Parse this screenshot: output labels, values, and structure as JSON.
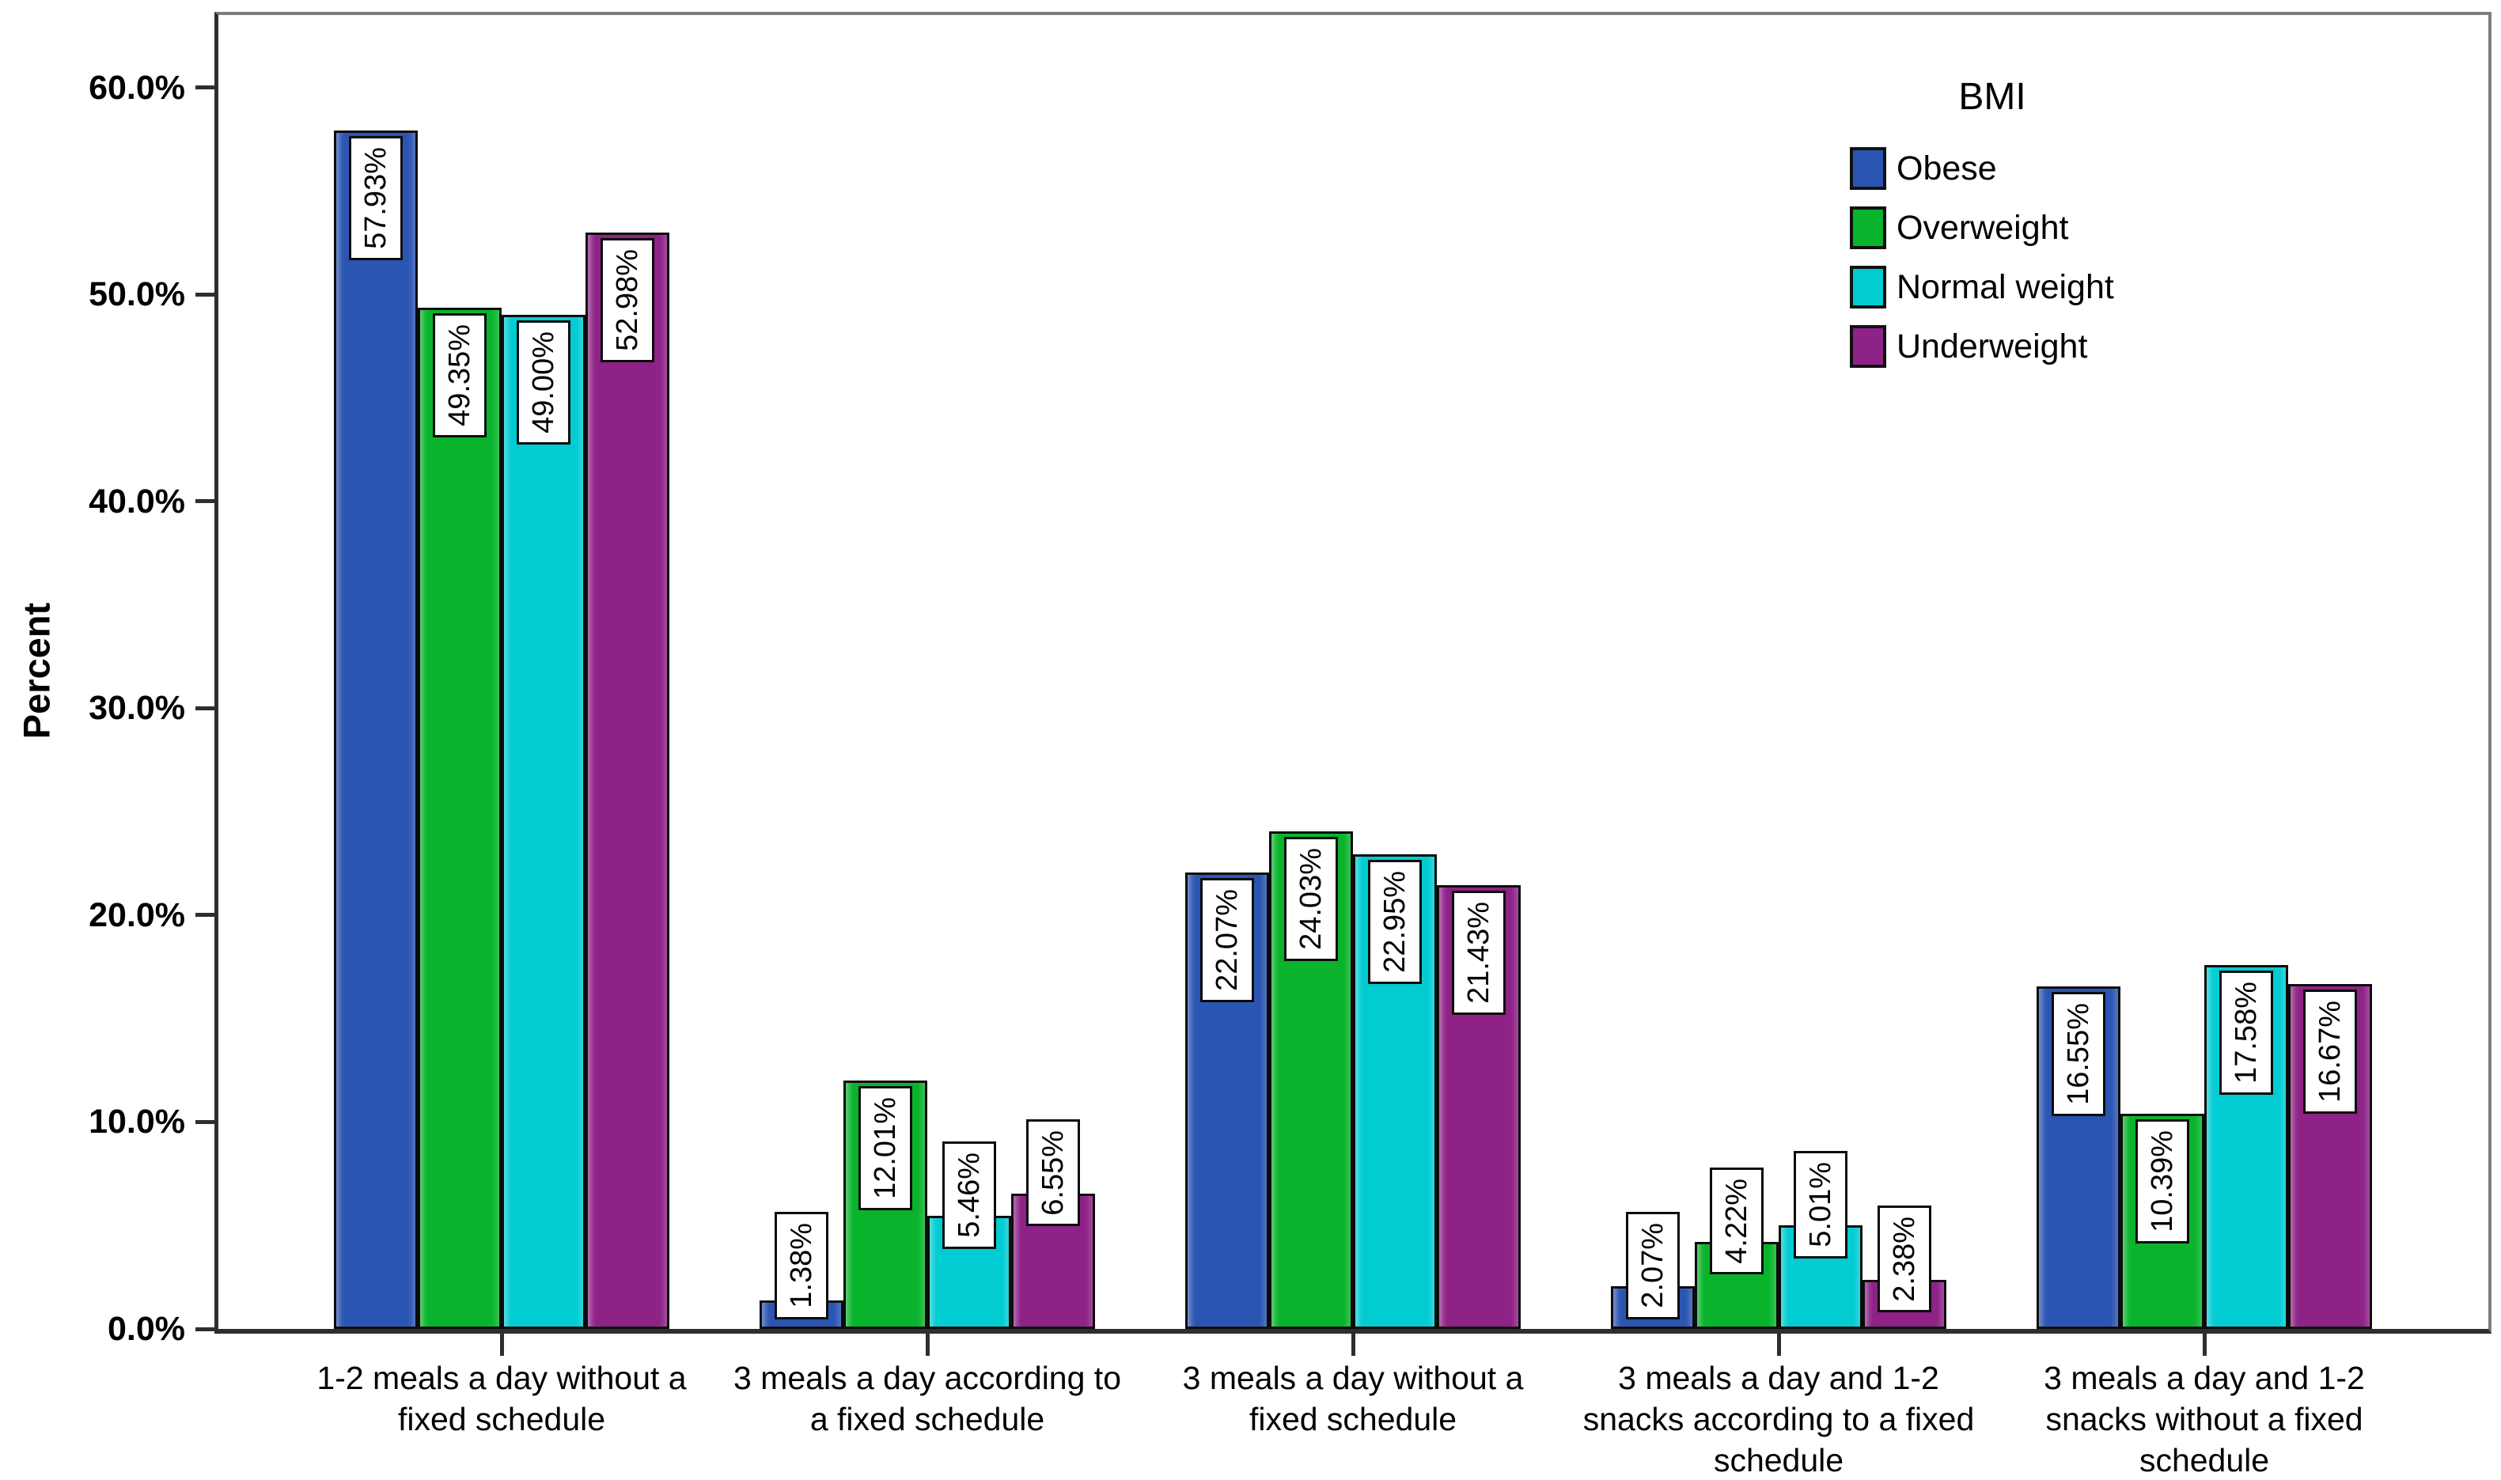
{
  "y_axis": {
    "title": "Percent",
    "tick_labels": [
      "60.0%",
      "50.0%",
      "40.0%",
      "30.0%",
      "20.0%",
      "10.0%",
      "0.0%"
    ],
    "tick_values": [
      60,
      50,
      40,
      30,
      20,
      10,
      0
    ]
  },
  "legend": {
    "title": "BMI",
    "items": [
      {
        "label": "Obese",
        "color": "#2b55b2"
      },
      {
        "label": "Overweight",
        "color": "#09b42c"
      },
      {
        "label": "Normal weight",
        "color": "#00ccd2"
      },
      {
        "label": "Underweight",
        "color": "#8e2286"
      }
    ]
  },
  "colors": {
    "bar_border": "#0c0c0c",
    "axis_line": "#2e2e2e",
    "frame_line": "#7d7d7d",
    "label_box_bg": "#ffffff",
    "background": "#ffffff"
  },
  "chart_data": {
    "type": "bar",
    "title": "",
    "xlabel": "",
    "ylabel": "Percent",
    "ylim": [
      0,
      63.5
    ],
    "yticks": [
      0,
      10,
      20,
      30,
      40,
      50,
      60
    ],
    "ytick_format": "percent_one_decimal",
    "grid": false,
    "legend_title": "BMI",
    "legend_position": "inside upper right",
    "bar_value_labels": "rotated 90deg in white boxes near bar tops",
    "categories": [
      "1-2 meals a day without a\nfixed schedule",
      "3 meals a day according to\na fixed schedule",
      "3 meals a day without a\nfixed schedule",
      "3 meals a day and 1-2\nsnacks according to a fixed\nschedule",
      "3 meals a day and 1-2\nsnacks without a fixed\nschedule"
    ],
    "series": [
      {
        "name": "Obese",
        "color": "#2b55b2",
        "values": [
          57.93,
          1.38,
          22.07,
          2.07,
          16.55
        ],
        "value_labels": [
          "57.93%",
          "1.38%",
          "22.07%",
          "2.07%",
          "16.55%"
        ]
      },
      {
        "name": "Overweight",
        "color": "#09b42c",
        "values": [
          49.35,
          12.01,
          24.03,
          4.22,
          10.39
        ],
        "value_labels": [
          "49.35%",
          "12.01%",
          "24.03%",
          "4.22%",
          "10.39%"
        ]
      },
      {
        "name": "Normal weight",
        "color": "#00ccd2",
        "values": [
          49.0,
          5.46,
          22.95,
          5.01,
          17.58
        ],
        "value_labels": [
          "49.00%",
          "5.46%",
          "22.95%",
          "5.01%",
          "17.58%"
        ]
      },
      {
        "name": "Underweight",
        "color": "#8e2286",
        "values": [
          52.98,
          6.55,
          21.43,
          2.38,
          16.67
        ],
        "value_labels": [
          "52.98%",
          "6.55%",
          "21.43%",
          "2.38%",
          "16.67%"
        ]
      }
    ]
  }
}
